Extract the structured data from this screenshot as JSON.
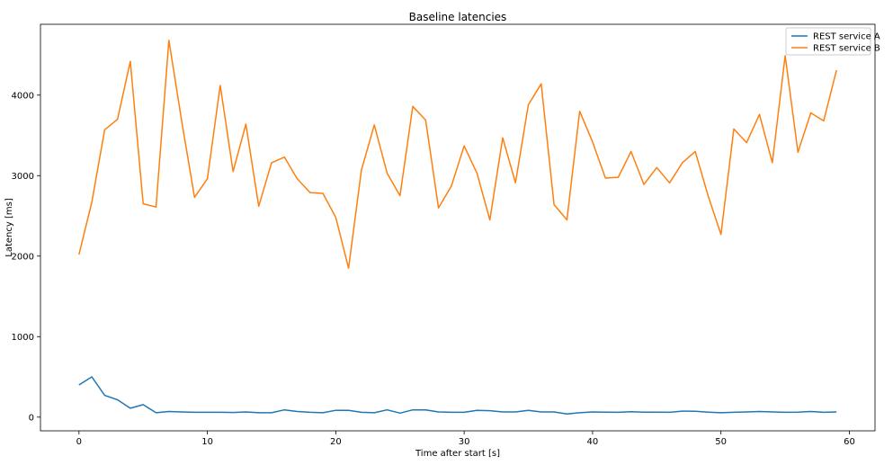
{
  "chart_data": {
    "type": "line",
    "title": "Baseline latencies",
    "xlabel": "Time after start [s]",
    "ylabel": "Latency [ms]",
    "xlim": [
      -3,
      62
    ],
    "ylim": [
      -170,
      4880
    ],
    "xticks": [
      0,
      10,
      20,
      30,
      40,
      50,
      60
    ],
    "yticks": [
      0,
      1000,
      2000,
      3000,
      4000
    ],
    "grid": false,
    "legend_position": "top-right",
    "x": [
      0,
      1,
      2,
      3,
      4,
      5,
      6,
      7,
      8,
      9,
      10,
      11,
      12,
      13,
      14,
      15,
      16,
      17,
      18,
      19,
      20,
      21,
      22,
      23,
      24,
      25,
      26,
      27,
      28,
      29,
      30,
      31,
      32,
      33,
      34,
      35,
      36,
      37,
      38,
      39,
      40,
      41,
      42,
      43,
      44,
      45,
      46,
      47,
      48,
      49,
      50,
      51,
      52,
      53,
      54,
      55,
      56,
      57,
      58,
      59
    ],
    "series": [
      {
        "name": "REST service A",
        "color": "#1f77b4",
        "values": [
          400,
          500,
          270,
          215,
          110,
          155,
          55,
          70,
          65,
          60,
          60,
          60,
          58,
          65,
          55,
          55,
          90,
          70,
          60,
          55,
          85,
          85,
          60,
          55,
          90,
          50,
          90,
          90,
          65,
          60,
          60,
          85,
          80,
          65,
          65,
          85,
          65,
          65,
          40,
          55,
          65,
          62,
          60,
          68,
          62,
          62,
          60,
          75,
          72,
          62,
          55,
          60,
          65,
          70,
          65,
          60,
          62,
          70,
          60,
          65
        ]
      },
      {
        "name": "REST service B",
        "color": "#ff7f0e",
        "values": [
          2020,
          2670,
          3570,
          3700,
          4420,
          2650,
          2610,
          4680,
          3680,
          2730,
          2960,
          4120,
          3050,
          3640,
          2620,
          3160,
          3230,
          2960,
          2790,
          2780,
          2480,
          1850,
          3070,
          3630,
          3030,
          2750,
          3860,
          3690,
          2600,
          2870,
          3370,
          3030,
          2450,
          3470,
          2910,
          3880,
          4140,
          2640,
          2450,
          3800,
          3420,
          2970,
          2980,
          3300,
          2890,
          3100,
          2910,
          3160,
          3300,
          2750,
          2270,
          3580,
          3410,
          3760,
          3160,
          4490,
          3290,
          3780,
          3680,
          4310
        ]
      }
    ]
  }
}
